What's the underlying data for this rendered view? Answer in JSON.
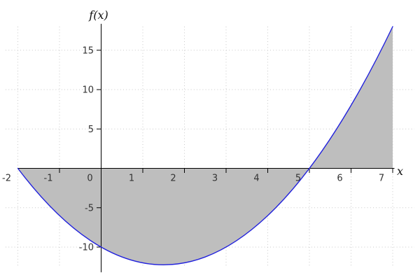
{
  "chart_data": {
    "type": "area",
    "title": "",
    "xlabel": "x",
    "ylabel": "f(x)",
    "function": "f(x) = x^2 - 3x - 10",
    "domain": [
      -2,
      7
    ],
    "zeros": [
      -2,
      5
    ],
    "minimum": {
      "x": 1.5,
      "y": -12.25
    },
    "xlim": [
      -2.3,
      7.6
    ],
    "ylim": [
      -13.2,
      18.5
    ],
    "grid": "dotted",
    "legend_position": "none",
    "x_ticks": [
      -2,
      -1,
      0,
      1,
      2,
      3,
      4,
      5,
      6,
      7
    ],
    "x_tick_labels": [
      "-2",
      "-1",
      "0",
      "1",
      "2",
      "3",
      "4",
      "5",
      "6",
      "7"
    ],
    "y_ticks": [
      15,
      10,
      5,
      -5,
      -10
    ],
    "y_tick_labels": [
      "15",
      "10",
      "5",
      "-5",
      "-10"
    ],
    "bezier": {
      "start": [
        -2,
        0
      ],
      "control": [
        2.5,
        -31.5
      ],
      "end": [
        7,
        18
      ]
    },
    "series": [
      {
        "name": "f(x)",
        "x": [
          -2,
          -1.75,
          -1.5,
          -1.25,
          -1,
          -0.75,
          -0.5,
          -0.25,
          0,
          0.25,
          0.5,
          0.75,
          1,
          1.25,
          1.5,
          1.75,
          2,
          2.25,
          2.5,
          2.75,
          3,
          3.25,
          3.5,
          3.75,
          4,
          4.25,
          4.5,
          4.75,
          5,
          5.25,
          5.5,
          5.75,
          6,
          6.25,
          6.5,
          6.75,
          7
        ],
        "y": [
          0,
          -1.6875,
          -3.25,
          -4.6875,
          -6,
          -7.1875,
          -8.25,
          -9.1875,
          -10,
          -10.6875,
          -11.25,
          -11.6875,
          -12,
          -12.1875,
          -12.25,
          -12.1875,
          -12,
          -11.6875,
          -11.25,
          -10.6875,
          -10,
          -9.1875,
          -8.25,
          -7.1875,
          -6,
          -4.6875,
          -3.25,
          -1.6875,
          0,
          1.8125,
          3.75,
          5.8125,
          8,
          10.3125,
          12.75,
          15.3125,
          18
        ]
      }
    ],
    "area_fill": {
      "between": "curve and x-axis",
      "from": -2,
      "to": 7,
      "right_edge": "vertical line at x=7"
    },
    "colors": {
      "curve": "#2222dd",
      "fill": "#bebebe",
      "axis": "#000000",
      "grid": "#c9c9c9",
      "tick_label": "#333333"
    }
  }
}
